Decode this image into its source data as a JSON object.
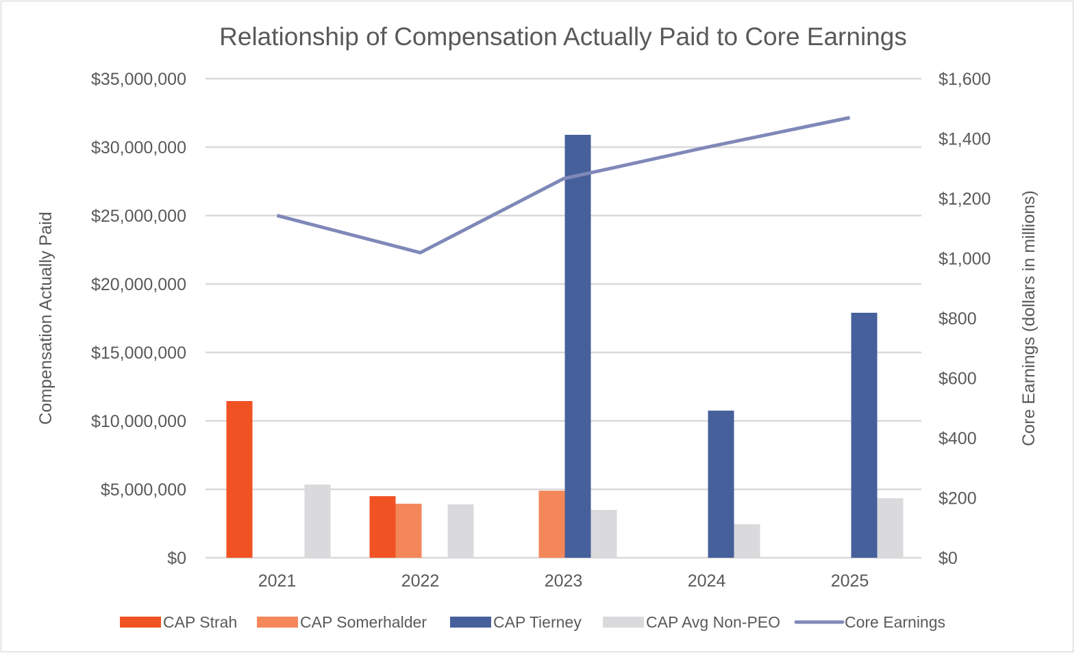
{
  "chart_data": {
    "type": "bar",
    "title": "Relationship of Compensation Actually Paid to Core Earnings",
    "categories": [
      "2021",
      "2022",
      "2023",
      "2024",
      "2025"
    ],
    "ylabel": "Compensation Actually Paid",
    "y2label": "Core Earnings (dollars in millions)",
    "ylim": [
      0,
      35000000
    ],
    "y2lim": [
      0,
      1600
    ],
    "yticks": [
      "$0",
      "$5,000,000",
      "$10,000,000",
      "$15,000,000",
      "$20,000,000",
      "$25,000,000",
      "$30,000,000",
      "$35,000,000"
    ],
    "y2ticks": [
      "$0",
      "$200",
      "$400",
      "$600",
      "$800",
      "$1,000",
      "$1,200",
      "$1,400",
      "$1,600"
    ],
    "grid": true,
    "legend_position": "bottom",
    "series": [
      {
        "name": "CAP Strah",
        "type": "bar",
        "axis": "left",
        "color": "#f05223",
        "values": [
          11450000,
          4500000,
          null,
          null,
          null
        ]
      },
      {
        "name": "CAP Somerhalder",
        "type": "bar",
        "axis": "left",
        "color": "#f4875a",
        "values": [
          null,
          3950000,
          4900000,
          null,
          null
        ]
      },
      {
        "name": "CAP Tierney",
        "type": "bar",
        "axis": "left",
        "color": "#46609b",
        "values": [
          null,
          null,
          30900000,
          10750000,
          17900000
        ]
      },
      {
        "name": "CAP Avg Non-PEO",
        "type": "bar",
        "axis": "left",
        "color": "#dadadc",
        "values": [
          5350000,
          3900000,
          3500000,
          2450000,
          4350000
        ]
      },
      {
        "name": "Core Earnings",
        "type": "line",
        "axis": "right",
        "color": "#7f88b8",
        "values": [
          1143,
          1019,
          1266,
          1371,
          1470
        ]
      }
    ]
  }
}
